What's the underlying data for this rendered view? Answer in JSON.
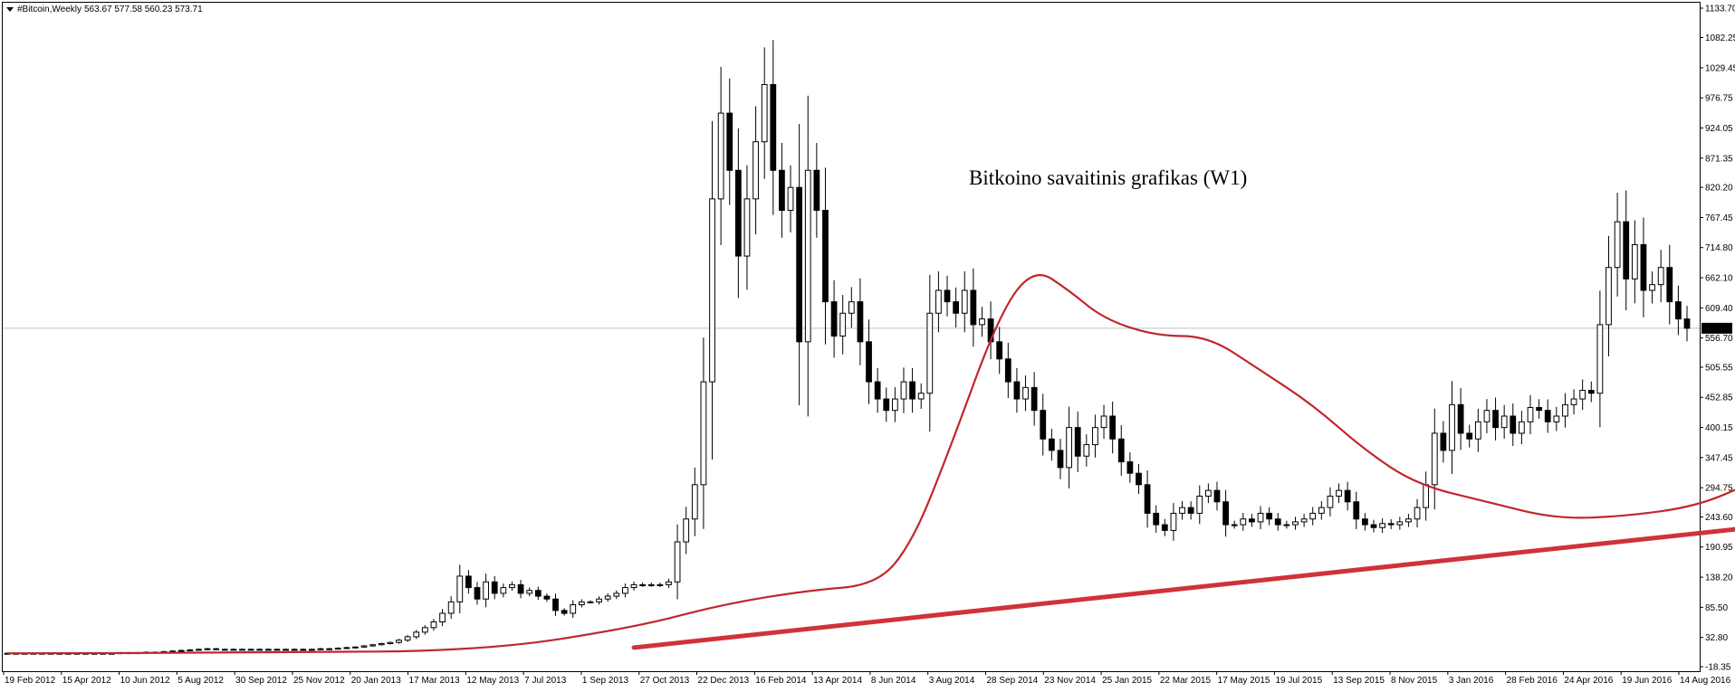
{
  "header": {
    "symbol": "#Bitcoin,Weekly",
    "ohlc": "563.67 577.58 560.23 573.71",
    "dropdown_icon": "triangle-down-icon"
  },
  "current_price_label": "573.71",
  "colors": {
    "moving_average": "#c0272d",
    "arrow": "#d0323a",
    "candle": "#000000",
    "price_line": "#c0c0c0",
    "price_tag_bg": "#000000",
    "price_tag_text": "#ffffff"
  },
  "chart_data": {
    "type": "candlestick",
    "title": "Bitkoino savaitinis grafikas (W1)",
    "y_axis_ticks": [
      "1133.70",
      "1082.25",
      "1029.45",
      "976.75",
      "924.05",
      "871.35",
      "820.20",
      "767.45",
      "714.80",
      "662.10",
      "609.40",
      "556.70",
      "505.55",
      "452.85",
      "400.15",
      "347.45",
      "294.75",
      "243.60",
      "190.95",
      "138.20",
      "85.50",
      "32.80",
      "-18.35"
    ],
    "ylim": [
      -18.35,
      1133.7
    ],
    "x_axis_ticks": [
      "19 Feb 2012",
      "15 Apr 2012",
      "10 Jun 2012",
      "5 Aug 2012",
      "30 Sep 2012",
      "25 Nov 2012",
      "20 Jan 2013",
      "17 Mar 2013",
      "12 May 2013",
      "7 Jul 2013",
      "1 Sep 2013",
      "27 Oct 2013",
      "22 Dec 2013",
      "16 Feb 2014",
      "13 Apr 2014",
      "8 Jun 2014",
      "3 Aug 2014",
      "28 Sep 2014",
      "23 Nov 2014",
      "25 Jan 2015",
      "22 Mar 2015",
      "17 May 2015",
      "19 Jul 2015",
      "13 Sep 2015",
      "8 Nov 2015",
      "3 Jan 2016",
      "28 Feb 2016",
      "24 Apr 2016",
      "19 Jun 2016",
      "14 Aug 2016"
    ],
    "current_price": 573.71,
    "last_bar": {
      "open": 563.67,
      "high": 577.58,
      "low": 560.23,
      "close": 573.71
    },
    "weekly_closes": [
      5,
      5,
      5,
      5,
      5,
      5,
      5,
      5,
      5,
      5,
      5,
      5,
      5,
      6,
      6,
      6,
      7,
      7,
      8,
      9,
      10,
      11,
      12,
      13,
      12,
      12,
      12,
      12,
      12,
      12,
      12,
      12,
      12,
      12,
      12,
      12,
      13,
      13,
      14,
      15,
      16,
      18,
      20,
      22,
      24,
      28,
      34,
      42,
      50,
      60,
      75,
      95,
      140,
      120,
      100,
      130,
      110,
      120,
      125,
      110,
      115,
      105,
      100,
      80,
      75,
      90,
      95,
      95,
      100,
      105,
      110,
      120,
      125,
      125,
      125,
      125,
      130,
      200,
      240,
      300,
      480,
      800,
      950,
      850,
      700,
      800,
      900,
      1000,
      850,
      780,
      820,
      550,
      850,
      780,
      620,
      560,
      600,
      620,
      550,
      480,
      450,
      430,
      450,
      480,
      450,
      460,
      600,
      640,
      620,
      600,
      640,
      580,
      590,
      550,
      520,
      480,
      450,
      470,
      430,
      380,
      360,
      330,
      400,
      350,
      370,
      400,
      420,
      380,
      340,
      320,
      300,
      250,
      230,
      220,
      250,
      260,
      250,
      280,
      290,
      270,
      230,
      230,
      240,
      235,
      250,
      240,
      230,
      230,
      235,
      240,
      250,
      260,
      280,
      290,
      270,
      240,
      230,
      225,
      232,
      230,
      235,
      240,
      260,
      300,
      390,
      360,
      440,
      390,
      380,
      410,
      430,
      400,
      420,
      390,
      410,
      435,
      430,
      410,
      420,
      440,
      450,
      465,
      460,
      580,
      680,
      760,
      660,
      720,
      640,
      650,
      680,
      620,
      590,
      573.71
    ],
    "moving_average_line": {
      "color": "#c0272d",
      "points": [
        [
          0,
          5
        ],
        [
          30,
          6
        ],
        [
          55,
          10
        ],
        [
          72,
          50
        ],
        [
          82,
          90
        ],
        [
          92,
          115
        ],
        [
          100,
          125
        ],
        [
          104,
          200
        ],
        [
          108,
          350
        ],
        [
          114,
          600
        ],
        [
          118,
          680
        ],
        [
          122,
          640
        ],
        [
          126,
          590
        ],
        [
          132,
          560
        ],
        [
          138,
          560
        ],
        [
          144,
          500
        ],
        [
          150,
          440
        ],
        [
          156,
          360
        ],
        [
          162,
          300
        ],
        [
          170,
          270
        ],
        [
          178,
          240
        ],
        [
          186,
          245
        ],
        [
          194,
          262
        ],
        [
          200,
          300
        ],
        [
          205,
          340
        ],
        [
          210,
          375
        ],
        [
          215,
          395
        ],
        [
          220,
          400
        ],
        [
          225,
          420
        ],
        [
          230,
          470
        ],
        [
          233,
          530
        ],
        [
          236,
          560
        ]
      ]
    },
    "trend_arrow": {
      "color": "#d0323a",
      "from": [
        72,
        15
      ],
      "to": [
        234,
        280
      ],
      "head_upper": [
        214,
        320
      ],
      "head_lower": [
        218,
        190
      ]
    }
  }
}
